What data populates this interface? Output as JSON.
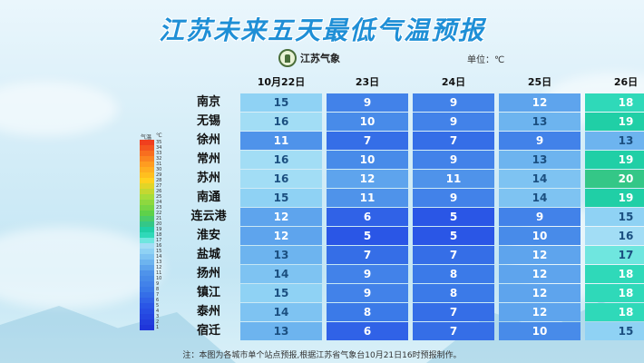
{
  "title": "江苏未来五天最低气温预报",
  "logo_text": "江苏气象",
  "unit_label": "单位：℃",
  "footnote": "注：本图为各城市单个站点预报,根据江苏省气象台10月21日16时预报制作。",
  "legend": {
    "label": "气温",
    "unit": "℃",
    "ticks": [
      35,
      34,
      33,
      32,
      31,
      30,
      29,
      28,
      27,
      26,
      25,
      24,
      23,
      22,
      21,
      20,
      19,
      18,
      17,
      16,
      15,
      14,
      13,
      12,
      11,
      10,
      9,
      8,
      7,
      6,
      5,
      4,
      3,
      2,
      1
    ]
  },
  "chart_data": {
    "type": "table",
    "title": "江苏未来五天最低气温预报",
    "columns": [
      "10月22日",
      "23日",
      "24日",
      "25日",
      "26日"
    ],
    "unit": "℃",
    "rows": [
      {
        "city": "南京",
        "values": [
          15,
          9,
          9,
          12,
          18
        ]
      },
      {
        "city": "无锡",
        "values": [
          16,
          10,
          9,
          13,
          19
        ]
      },
      {
        "city": "徐州",
        "values": [
          11,
          7,
          7,
          9,
          13
        ]
      },
      {
        "city": "常州",
        "values": [
          16,
          10,
          9,
          13,
          19
        ]
      },
      {
        "city": "苏州",
        "values": [
          16,
          12,
          11,
          14,
          20
        ]
      },
      {
        "city": "南通",
        "values": [
          15,
          11,
          9,
          14,
          19
        ]
      },
      {
        "city": "连云港",
        "values": [
          12,
          6,
          5,
          9,
          15
        ]
      },
      {
        "city": "淮安",
        "values": [
          12,
          5,
          5,
          10,
          16
        ]
      },
      {
        "city": "盐城",
        "values": [
          13,
          7,
          7,
          12,
          17
        ]
      },
      {
        "city": "扬州",
        "values": [
          14,
          9,
          8,
          12,
          18
        ]
      },
      {
        "city": "镇江",
        "values": [
          15,
          9,
          8,
          12,
          18
        ]
      },
      {
        "city": "泰州",
        "values": [
          14,
          8,
          7,
          12,
          18
        ]
      },
      {
        "city": "宿迁",
        "values": [
          13,
          6,
          7,
          10,
          15
        ]
      }
    ]
  }
}
